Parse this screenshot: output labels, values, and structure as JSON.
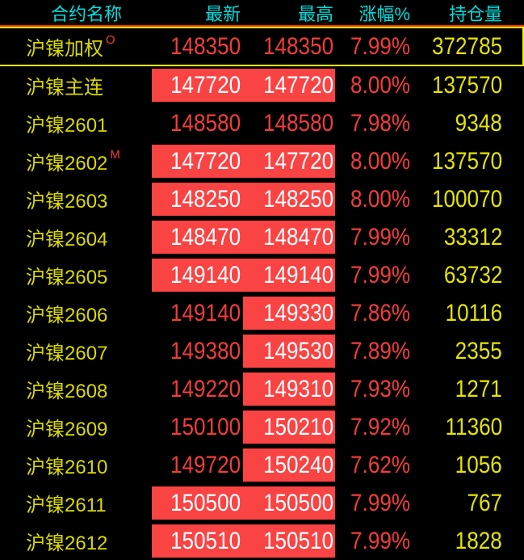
{
  "table": {
    "columns": [
      "合约名称",
      "最新",
      "最高",
      "涨幅%",
      "持仓量"
    ],
    "rows": [
      {
        "name": "沪镍加权",
        "sup": "O",
        "latest": "148350",
        "high": "148350",
        "pct": "7.99%",
        "oi": "372785",
        "latest_hl": false,
        "high_hl": false,
        "selected": true
      },
      {
        "name": "沪镍主连",
        "sup": "",
        "latest": "147720",
        "high": "147720",
        "pct": "8.00%",
        "oi": "137570",
        "latest_hl": true,
        "high_hl": true,
        "selected": false
      },
      {
        "name": "沪镍2601",
        "sup": "",
        "latest": "148580",
        "high": "148580",
        "pct": "7.98%",
        "oi": "9348",
        "latest_hl": false,
        "high_hl": false,
        "selected": false
      },
      {
        "name": "沪镍2602",
        "sup": "M",
        "latest": "147720",
        "high": "147720",
        "pct": "8.00%",
        "oi": "137570",
        "latest_hl": true,
        "high_hl": true,
        "selected": false
      },
      {
        "name": "沪镍2603",
        "sup": "",
        "latest": "148250",
        "high": "148250",
        "pct": "8.00%",
        "oi": "100070",
        "latest_hl": true,
        "high_hl": true,
        "selected": false
      },
      {
        "name": "沪镍2604",
        "sup": "",
        "latest": "148470",
        "high": "148470",
        "pct": "7.99%",
        "oi": "33312",
        "latest_hl": true,
        "high_hl": true,
        "selected": false
      },
      {
        "name": "沪镍2605",
        "sup": "",
        "latest": "149140",
        "high": "149140",
        "pct": "7.99%",
        "oi": "63732",
        "latest_hl": true,
        "high_hl": true,
        "selected": false
      },
      {
        "name": "沪镍2606",
        "sup": "",
        "latest": "149140",
        "high": "149330",
        "pct": "7.86%",
        "oi": "10116",
        "latest_hl": false,
        "high_hl": true,
        "selected": false
      },
      {
        "name": "沪镍2607",
        "sup": "",
        "latest": "149380",
        "high": "149530",
        "pct": "7.89%",
        "oi": "2355",
        "latest_hl": false,
        "high_hl": true,
        "selected": false
      },
      {
        "name": "沪镍2608",
        "sup": "",
        "latest": "149220",
        "high": "149310",
        "pct": "7.93%",
        "oi": "1271",
        "latest_hl": false,
        "high_hl": true,
        "selected": false
      },
      {
        "name": "沪镍2609",
        "sup": "",
        "latest": "150100",
        "high": "150210",
        "pct": "7.92%",
        "oi": "11360",
        "latest_hl": false,
        "high_hl": true,
        "selected": false
      },
      {
        "name": "沪镍2610",
        "sup": "",
        "latest": "149720",
        "high": "150240",
        "pct": "7.62%",
        "oi": "1056",
        "latest_hl": false,
        "high_hl": true,
        "selected": false
      },
      {
        "name": "沪镍2611",
        "sup": "",
        "latest": "150500",
        "high": "150500",
        "pct": "7.99%",
        "oi": "767",
        "latest_hl": true,
        "high_hl": true,
        "selected": false
      },
      {
        "name": "沪镍2612",
        "sup": "",
        "latest": "150510",
        "high": "150510",
        "pct": "7.99%",
        "oi": "1828",
        "latest_hl": true,
        "high_hl": true,
        "selected": false
      }
    ]
  },
  "colors": {
    "background": "#000000",
    "header_text": "#00dede",
    "name_text": "#d9d900",
    "price_up_text": "#f23c3c",
    "highlight_bg": "#fa4343",
    "highlight_text": "#ffffff",
    "open_interest_text": "#e4e400",
    "header_separator": "#f03000",
    "selection_border": "#f5f500"
  }
}
